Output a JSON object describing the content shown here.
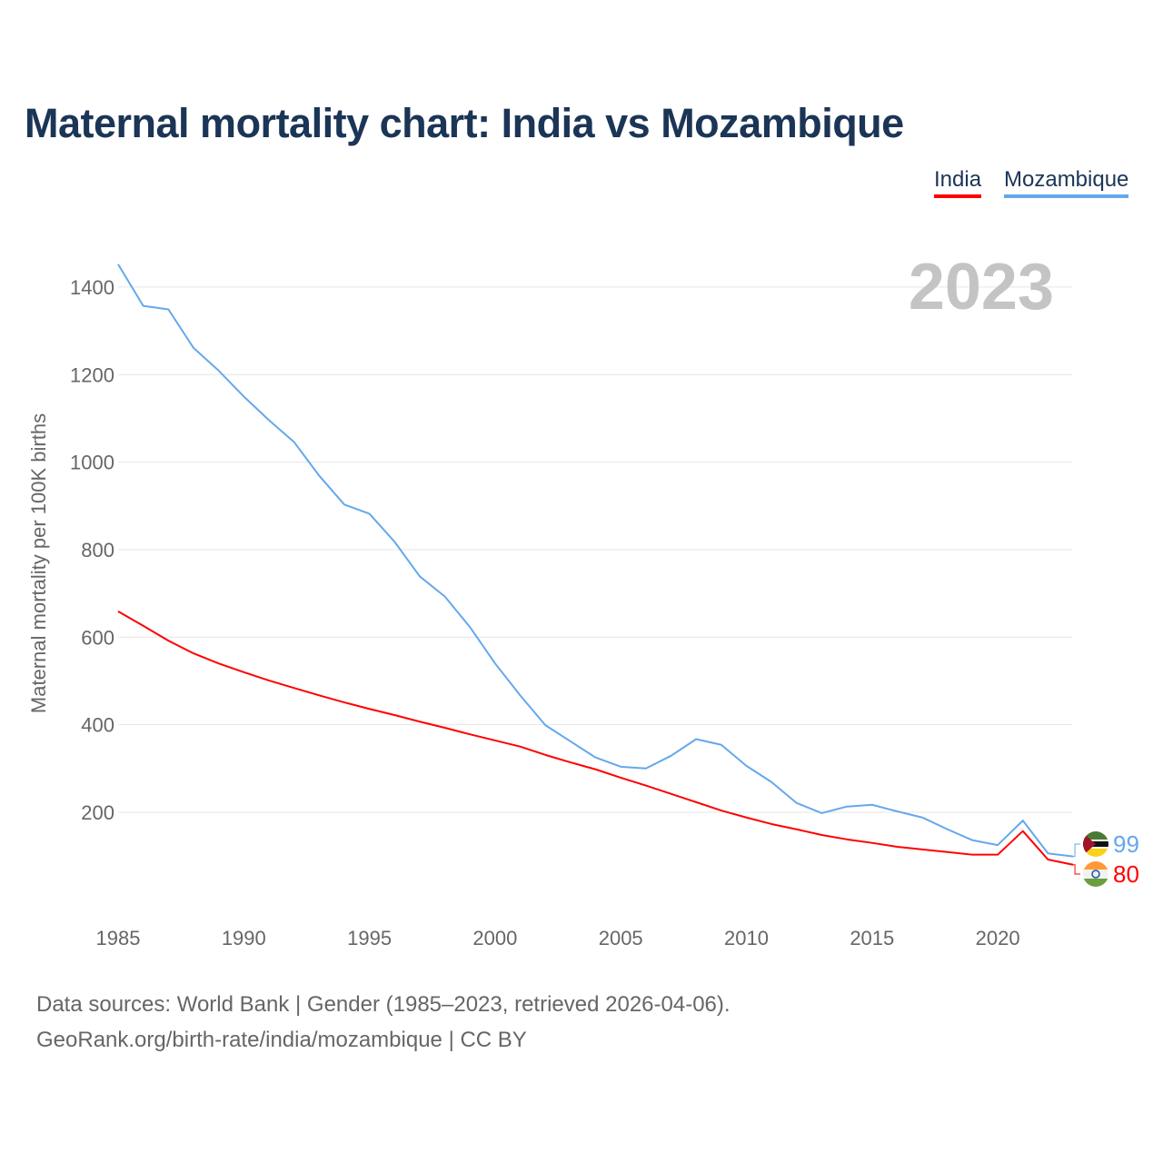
{
  "title": "Maternal mortality chart: India vs Mozambique",
  "legend": {
    "india": "India",
    "mozambique": "Mozambique"
  },
  "footer": {
    "line1": "Data sources: World Bank | Gender (1985–2023, retrieved 2026-04-06).",
    "line2": "GeoRank.org/birth-rate/india/mozambique | CC BY"
  },
  "colors": {
    "india": "#ff0000",
    "mozambique": "#64a8ec"
  },
  "chart_data": {
    "type": "line",
    "title": "Maternal mortality chart: India vs Mozambique",
    "ylabel": "Maternal mortality per 100K births",
    "xlabel": "",
    "year_label": "2023",
    "ylim": [
      0,
      1450
    ],
    "xlim": [
      1985,
      2023
    ],
    "yticks": [
      200,
      400,
      600,
      800,
      1000,
      1200,
      1400
    ],
    "xticks": [
      1985,
      1990,
      1995,
      2000,
      2005,
      2010,
      2015,
      2020
    ],
    "grid": true,
    "legend_position": "top-right",
    "x": [
      1985,
      1986,
      1987,
      1988,
      1989,
      1990,
      1991,
      1992,
      1993,
      1994,
      1995,
      1996,
      1997,
      1998,
      1999,
      2000,
      2001,
      2002,
      2003,
      2004,
      2005,
      2006,
      2007,
      2008,
      2009,
      2010,
      2011,
      2012,
      2013,
      2014,
      2015,
      2016,
      2017,
      2018,
      2019,
      2020,
      2021,
      2022,
      2023
    ],
    "series": [
      {
        "name": "India",
        "end_label": "80",
        "values": [
          659,
          626,
          592,
          563,
          540,
          520,
          501,
          484,
          467,
          451,
          436,
          422,
          407,
          393,
          378,
          364,
          350,
          331,
          314,
          298,
          279,
          261,
          242,
          223,
          204,
          188,
          173,
          161,
          148,
          138,
          130,
          121,
          115,
          109,
          103,
          103,
          157,
          92,
          80
        ]
      },
      {
        "name": "Mozambique",
        "end_label": "99",
        "values": [
          1452,
          1357,
          1349,
          1261,
          1209,
          1150,
          1096,
          1046,
          969,
          903,
          882,
          818,
          739,
          693,
          623,
          540,
          467,
          399,
          362,
          325,
          304,
          300,
          329,
          367,
          354,
          306,
          269,
          221,
          198,
          213,
          217,
          202,
          188,
          161,
          136,
          125,
          181,
          106,
          99
        ]
      }
    ]
  }
}
